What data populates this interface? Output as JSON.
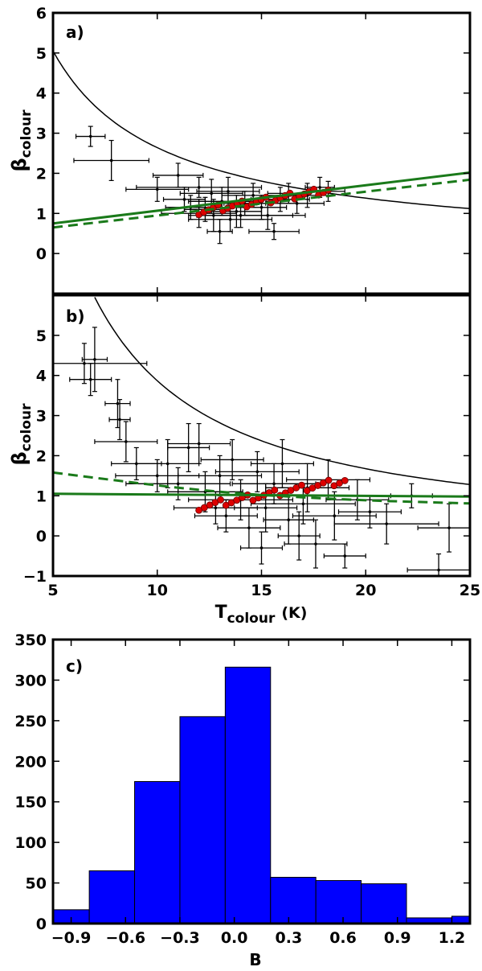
{
  "chart_data": [
    {
      "panel": "a)",
      "type": "scatter",
      "xlabel": "T",
      "xlabel_sub": "colour",
      "xlabel_unit": "(K)",
      "ylabel": "β",
      "ylabel_sub": "colour",
      "xlim": [
        5,
        25
      ],
      "ylim": [
        -1,
        6
      ],
      "yticks": [
        0,
        1,
        2,
        3,
        4,
        5,
        6
      ],
      "xticks": [
        5,
        10,
        15,
        20,
        25
      ],
      "grid": false,
      "colors": {
        "points": "#000000",
        "binned": "#dd0000",
        "fit": "#1a7a1a",
        "model": "#000000"
      },
      "model_curve": {
        "x_start": 5,
        "x_end": 25,
        "y_at_start": 5.05,
        "y_at_end": 1.12
      },
      "fit_solid": {
        "x": [
          5,
          25
        ],
        "y": [
          0.75,
          2.02
        ]
      },
      "fit_dashed": {
        "x": [
          5,
          25
        ],
        "y": [
          0.65,
          1.84
        ]
      },
      "points": [
        {
          "x": 6.8,
          "y": 2.92,
          "ex": 0.7,
          "ey": 0.25
        },
        {
          "x": 7.8,
          "y": 2.32,
          "ex": 1.8,
          "ey": 0.5
        },
        {
          "x": 10.0,
          "y": 1.6,
          "ex": 1.5,
          "ey": 0.3
        },
        {
          "x": 11.0,
          "y": 1.95,
          "ex": 1.2,
          "ey": 0.3
        },
        {
          "x": 11.3,
          "y": 1.35,
          "ex": 1.0,
          "ey": 0.3
        },
        {
          "x": 12.0,
          "y": 1.65,
          "ex": 3.0,
          "ey": 0.25
        },
        {
          "x": 12.3,
          "y": 1.1,
          "ex": 1.0,
          "ey": 0.3
        },
        {
          "x": 12.7,
          "y": 0.95,
          "ex": 0.8,
          "ey": 0.4
        },
        {
          "x": 13.0,
          "y": 0.55,
          "ex": 0.6,
          "ey": 0.3
        },
        {
          "x": 13.1,
          "y": 1.3,
          "ex": 1.6,
          "ey": 0.35
        },
        {
          "x": 13.4,
          "y": 1.55,
          "ex": 1.5,
          "ey": 0.35
        },
        {
          "x": 13.8,
          "y": 1.05,
          "ex": 1.2,
          "ey": 0.4
        },
        {
          "x": 14.2,
          "y": 1.25,
          "ex": 1.0,
          "ey": 0.3
        },
        {
          "x": 14.6,
          "y": 1.45,
          "ex": 1.5,
          "ey": 0.3
        },
        {
          "x": 15.0,
          "y": 1.15,
          "ex": 1.2,
          "ey": 0.3
        },
        {
          "x": 15.3,
          "y": 0.95,
          "ex": 1.8,
          "ey": 0.35
        },
        {
          "x": 15.6,
          "y": 0.55,
          "ex": 1.2,
          "ey": 0.2
        },
        {
          "x": 15.9,
          "y": 1.35,
          "ex": 1.4,
          "ey": 0.3
        },
        {
          "x": 16.3,
          "y": 1.5,
          "ex": 1.0,
          "ey": 0.25
        },
        {
          "x": 16.7,
          "y": 1.25,
          "ex": 1.3,
          "ey": 0.25
        },
        {
          "x": 17.2,
          "y": 1.45,
          "ex": 1.0,
          "ey": 0.3
        },
        {
          "x": 17.8,
          "y": 1.65,
          "ex": 0.7,
          "ey": 0.25
        },
        {
          "x": 18.2,
          "y": 1.55,
          "ex": 0.8,
          "ey": 0.25
        },
        {
          "x": 12.0,
          "y": 1.0,
          "ex": 1.8,
          "ey": 0.35
        },
        {
          "x": 13.5,
          "y": 0.85,
          "ex": 2.0,
          "ey": 0.3
        },
        {
          "x": 14.0,
          "y": 0.95,
          "ex": 2.5,
          "ey": 0.3
        },
        {
          "x": 12.6,
          "y": 1.5,
          "ex": 1.5,
          "ey": 0.35
        },
        {
          "x": 11.6,
          "y": 1.15,
          "ex": 1.2,
          "ey": 0.3
        }
      ],
      "binned_start": [
        12.0,
        1.05
      ],
      "binned_end": [
        18.2,
        1.58
      ]
    },
    {
      "panel": "b)",
      "type": "scatter",
      "xlabel": "T",
      "xlabel_sub": "colour",
      "xlabel_unit": "(K)",
      "ylabel": "β",
      "ylabel_sub": "colour",
      "xlim": [
        5,
        25
      ],
      "ylim": [
        -1,
        6
      ],
      "yticks": [
        -1,
        0,
        1,
        2,
        3,
        4,
        5
      ],
      "xticks": [
        5,
        10,
        15,
        20,
        25
      ],
      "grid": false,
      "colors": {
        "points": "#000000",
        "binned": "#dd0000",
        "fit": "#1a7a1a",
        "model": "#000000"
      },
      "model_curve": {
        "x_start": 7.0,
        "x_end": 25,
        "y_at_start": 5.95,
        "y_at_end": 1.28
      },
      "fit_solid": {
        "x": [
          5,
          25
        ],
        "y": [
          1.05,
          0.98
        ]
      },
      "fit_dashed_points": {
        "x": [
          5,
          7,
          9,
          11,
          13,
          15,
          17,
          19,
          21,
          23,
          25
        ],
        "y": [
          1.58,
          1.45,
          1.32,
          1.2,
          1.1,
          1.02,
          0.96,
          0.91,
          0.87,
          0.84,
          0.81
        ]
      },
      "points": [
        {
          "x": 6.5,
          "y": 4.3,
          "ex": 3.0,
          "ey": 0.5
        },
        {
          "x": 6.8,
          "y": 3.9,
          "ex": 1.0,
          "ey": 0.4
        },
        {
          "x": 7.0,
          "y": 4.4,
          "ex": 0.6,
          "ey": 0.8
        },
        {
          "x": 8.1,
          "y": 3.3,
          "ex": 0.6,
          "ey": 0.6
        },
        {
          "x": 8.2,
          "y": 2.9,
          "ex": 0.5,
          "ey": 0.5
        },
        {
          "x": 8.5,
          "y": 2.35,
          "ex": 1.5,
          "ey": 0.5
        },
        {
          "x": 9.0,
          "y": 1.8,
          "ex": 1.2,
          "ey": 0.4
        },
        {
          "x": 10.0,
          "y": 1.5,
          "ex": 2.0,
          "ey": 0.4
        },
        {
          "x": 10.5,
          "y": 1.8,
          "ex": 1.5,
          "ey": 0.6
        },
        {
          "x": 11.5,
          "y": 2.2,
          "ex": 1.0,
          "ey": 0.6
        },
        {
          "x": 12.0,
          "y": 2.3,
          "ex": 1.5,
          "ey": 0.5
        },
        {
          "x": 11.0,
          "y": 1.3,
          "ex": 2.5,
          "ey": 0.4
        },
        {
          "x": 12.3,
          "y": 1.1,
          "ex": 1.8,
          "ey": 0.5
        },
        {
          "x": 13.0,
          "y": 1.5,
          "ex": 2.0,
          "ey": 0.5
        },
        {
          "x": 13.3,
          "y": 0.5,
          "ex": 1.5,
          "ey": 0.4
        },
        {
          "x": 13.6,
          "y": 1.9,
          "ex": 1.5,
          "ey": 0.5
        },
        {
          "x": 14.0,
          "y": 0.9,
          "ex": 2.5,
          "ey": 0.5
        },
        {
          "x": 14.4,
          "y": 0.2,
          "ex": 1.5,
          "ey": 0.5
        },
        {
          "x": 14.8,
          "y": 1.6,
          "ex": 2.0,
          "ey": 0.5
        },
        {
          "x": 15.2,
          "y": 0.7,
          "ex": 1.5,
          "ey": 0.6
        },
        {
          "x": 15.6,
          "y": 1.3,
          "ex": 2.0,
          "ey": 0.5
        },
        {
          "x": 16.0,
          "y": 1.8,
          "ex": 1.5,
          "ey": 0.6
        },
        {
          "x": 16.3,
          "y": 0.4,
          "ex": 1.2,
          "ey": 0.6
        },
        {
          "x": 16.8,
          "y": 0.0,
          "ex": 1.0,
          "ey": 0.6
        },
        {
          "x": 17.2,
          "y": 1.2,
          "ex": 2.0,
          "ey": 0.6
        },
        {
          "x": 17.6,
          "y": -0.2,
          "ex": 1.5,
          "ey": 0.6
        },
        {
          "x": 18.2,
          "y": 1.4,
          "ex": 2.0,
          "ey": 0.5
        },
        {
          "x": 18.5,
          "y": 0.5,
          "ex": 2.0,
          "ey": 0.6
        },
        {
          "x": 19.0,
          "y": -0.5,
          "ex": 1.0,
          "ey": 0.3
        },
        {
          "x": 19.6,
          "y": 0.9,
          "ex": 1.5,
          "ey": 0.5
        },
        {
          "x": 20.2,
          "y": 0.6,
          "ex": 1.5,
          "ey": 0.4
        },
        {
          "x": 21.0,
          "y": 0.3,
          "ex": 2.5,
          "ey": 0.5
        },
        {
          "x": 22.2,
          "y": 1.0,
          "ex": 1.0,
          "ey": 0.3
        },
        {
          "x": 23.5,
          "y": -0.85,
          "ex": 1.5,
          "ey": 0.4
        },
        {
          "x": 24.0,
          "y": 0.2,
          "ex": 1.5,
          "ey": 0.6
        },
        {
          "x": 12.8,
          "y": 0.7,
          "ex": 2.0,
          "ey": 0.4
        },
        {
          "x": 15.0,
          "y": -0.3,
          "ex": 1.0,
          "ey": 0.4
        },
        {
          "x": 17.0,
          "y": 0.8,
          "ex": 2.5,
          "ey": 0.5
        }
      ],
      "binned_start": [
        12.0,
        0.72
      ],
      "binned_end": [
        19.0,
        1.38
      ]
    },
    {
      "panel": "c)",
      "type": "bar",
      "xlabel": "B",
      "xlim": [
        -1.0,
        1.3
      ],
      "ylim": [
        0,
        350
      ],
      "xticks": [
        -0.9,
        -0.6,
        -0.3,
        0.0,
        0.3,
        0.6,
        0.9,
        1.2
      ],
      "xtick_labels": [
        "−0.9",
        "−0.6",
        "−0.3",
        "0.0",
        "0.3",
        "0.6",
        "0.9",
        "1.2"
      ],
      "yticks": [
        0,
        50,
        100,
        150,
        200,
        250,
        300,
        350
      ],
      "grid": false,
      "bar_color": "#0000ff",
      "bin_edges": [
        -1.0,
        -0.8,
        -0.55,
        -0.3,
        -0.05,
        0.2,
        0.45,
        0.7,
        0.95,
        1.2,
        1.3
      ],
      "values": [
        17,
        65,
        175,
        255,
        316,
        57,
        53,
        49,
        7,
        9
      ]
    }
  ]
}
